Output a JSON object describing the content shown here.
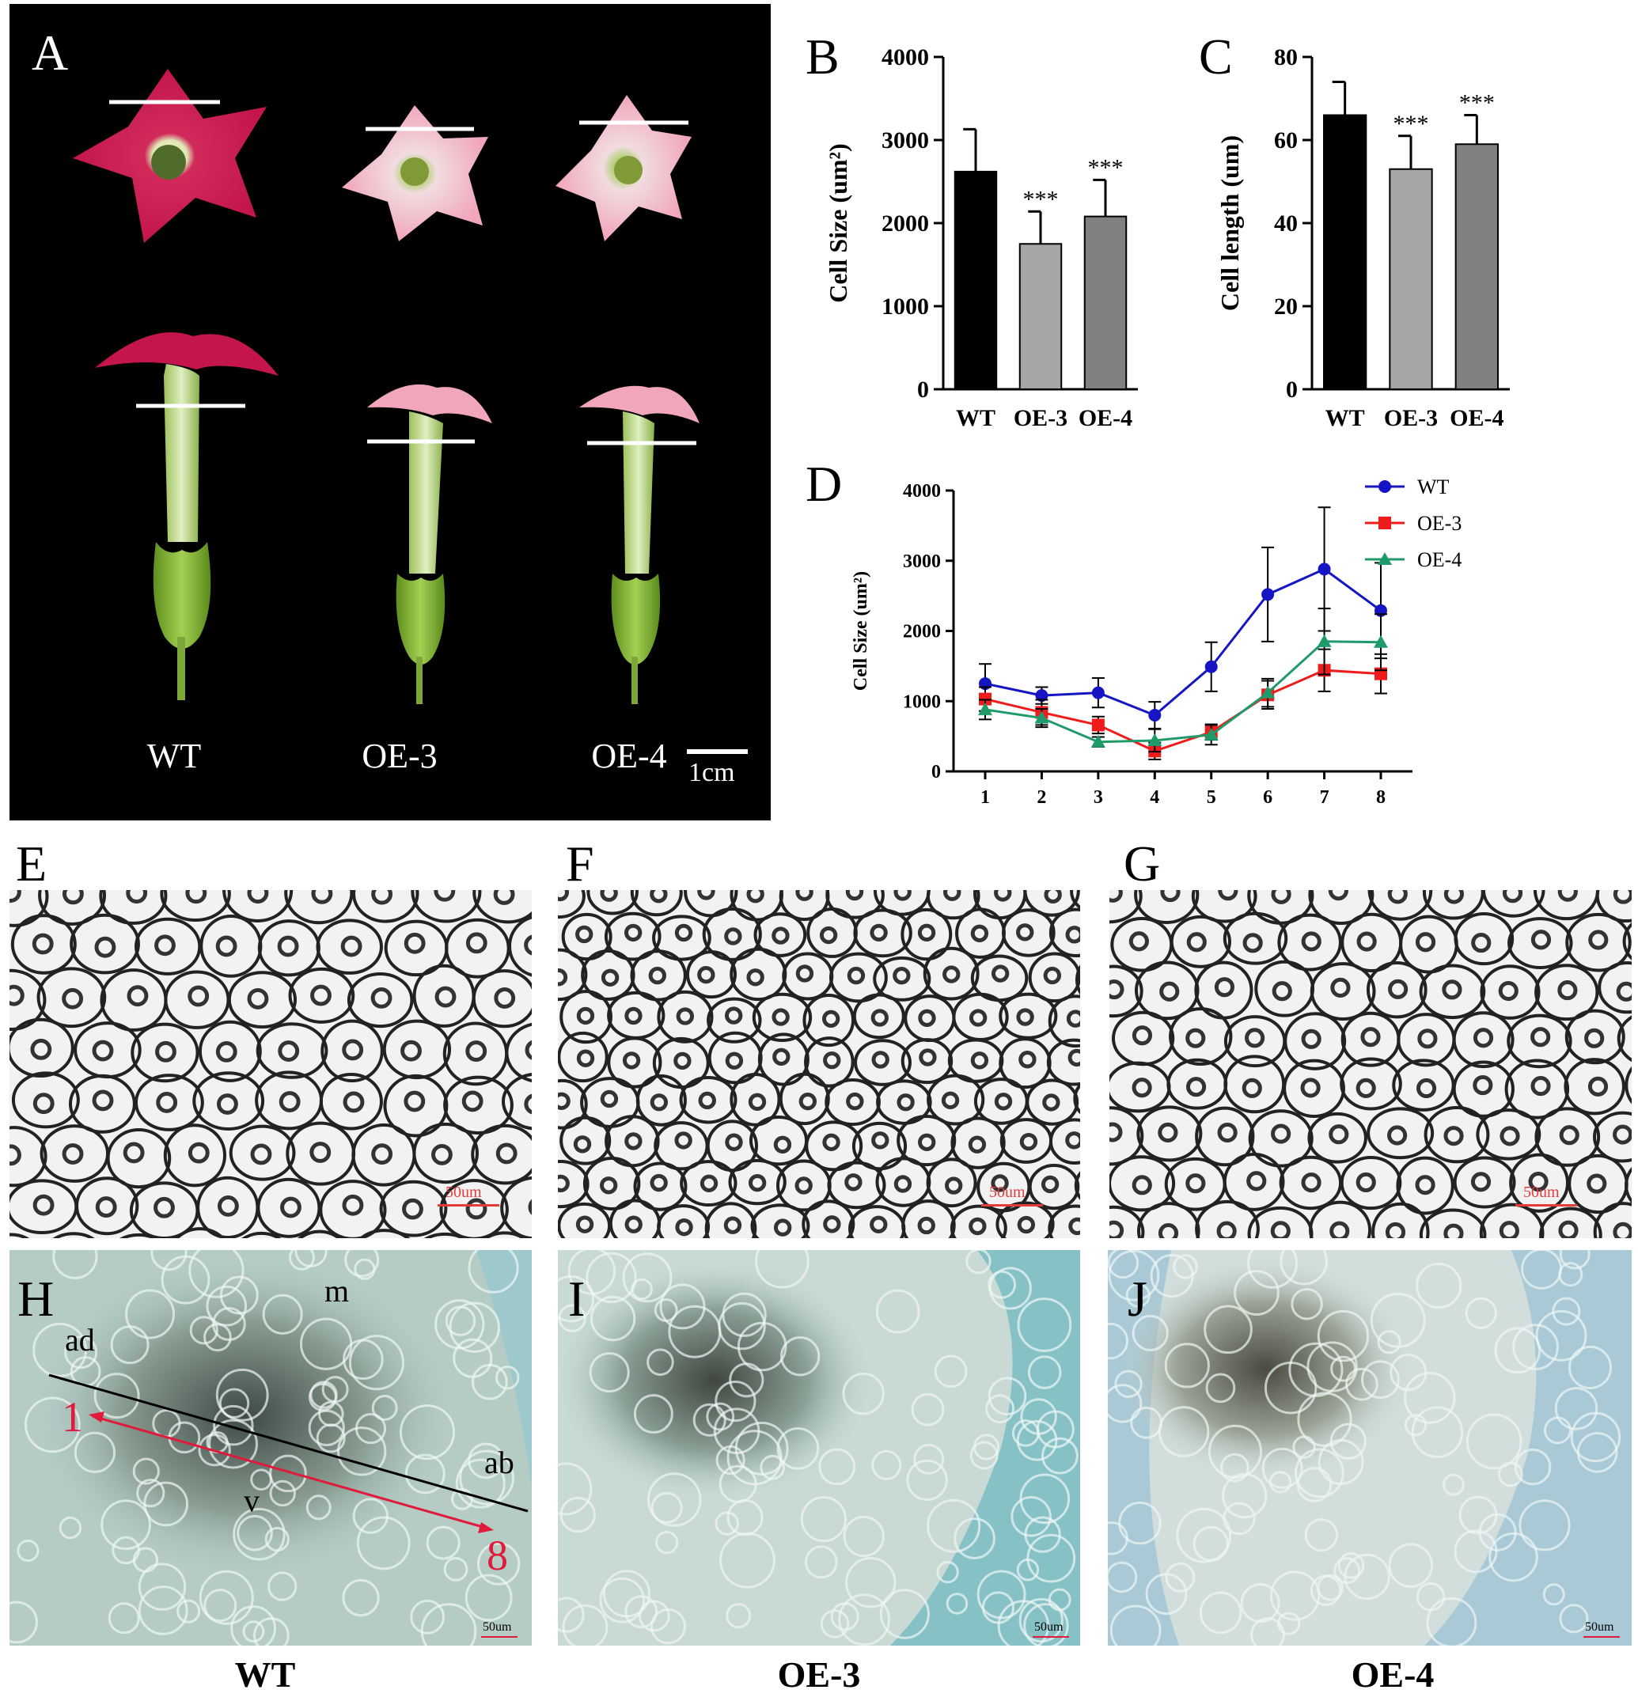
{
  "panels": {
    "A": {
      "letter": "A",
      "labels": [
        "WT",
        "OE-3",
        "OE-4"
      ],
      "scale": "1cm"
    },
    "B": {
      "letter": "B"
    },
    "C": {
      "letter": "C"
    },
    "D": {
      "letter": "D"
    },
    "E": {
      "letter": "E",
      "scale": "50um"
    },
    "F": {
      "letter": "F",
      "scale": "50um"
    },
    "G": {
      "letter": "G",
      "scale": "50um"
    },
    "H": {
      "letter": "H",
      "scale": "50um",
      "annotations": {
        "ad": "ad",
        "m": "m",
        "ab": "ab",
        "v": "v",
        "start": "1",
        "end": "8"
      }
    },
    "I": {
      "letter": "I",
      "scale": "50um"
    },
    "J": {
      "letter": "J",
      "scale": "50um"
    }
  },
  "bottom_labels": [
    "WT",
    "OE-3",
    "OE-4"
  ],
  "chart_data": [
    {
      "id": "B",
      "type": "bar",
      "categories": [
        "WT",
        "OE-3",
        "OE-4"
      ],
      "values": [
        2620,
        1750,
        2080
      ],
      "errors": [
        510,
        390,
        440
      ],
      "significance": [
        "",
        "***",
        "***"
      ],
      "colors": [
        "#000000",
        "#a6a6a8",
        "#808080"
      ],
      "ylabel": "Cell Size (um²)",
      "ylim": [
        0,
        4000
      ],
      "yticks": [
        0,
        1000,
        2000,
        3000,
        4000
      ]
    },
    {
      "id": "C",
      "type": "bar",
      "categories": [
        "WT",
        "OE-3",
        "OE-4"
      ],
      "values": [
        66,
        53,
        59
      ],
      "errors": [
        8,
        8,
        7
      ],
      "significance": [
        "",
        "***",
        "***"
      ],
      "colors": [
        "#000000",
        "#a6a6a8",
        "#808080"
      ],
      "ylabel": "Cell length (um)",
      "ylim": [
        0,
        80
      ],
      "yticks": [
        0,
        20,
        40,
        60,
        80
      ]
    },
    {
      "id": "D",
      "type": "line",
      "x": [
        1,
        2,
        3,
        4,
        5,
        6,
        7,
        8
      ],
      "ylabel": "Cell Size (um²)",
      "ylim": [
        0,
        4000
      ],
      "yticks": [
        0,
        1000,
        2000,
        3000,
        4000
      ],
      "legend_position": "top-right",
      "series": [
        {
          "name": "WT",
          "color": "#1515c4",
          "marker": "circle",
          "values": [
            1250,
            1080,
            1120,
            800,
            1490,
            2520,
            2880,
            2290
          ],
          "errors": [
            280,
            120,
            210,
            190,
            350,
            670,
            880,
            680
          ]
        },
        {
          "name": "OE-3",
          "color": "#ef1c1c",
          "marker": "square",
          "values": [
            1030,
            840,
            660,
            290,
            560,
            1090,
            1440,
            1390
          ],
          "errors": [
            170,
            180,
            120,
            120,
            110,
            200,
            300,
            280
          ]
        },
        {
          "name": "OE-4",
          "color": "#1f9a6a",
          "marker": "triangle",
          "values": [
            880,
            760,
            420,
            440,
            520,
            1120,
            1850,
            1840
          ],
          "errors": [
            140,
            130,
            70,
            160,
            140,
            200,
            470,
            400
          ]
        }
      ]
    }
  ]
}
